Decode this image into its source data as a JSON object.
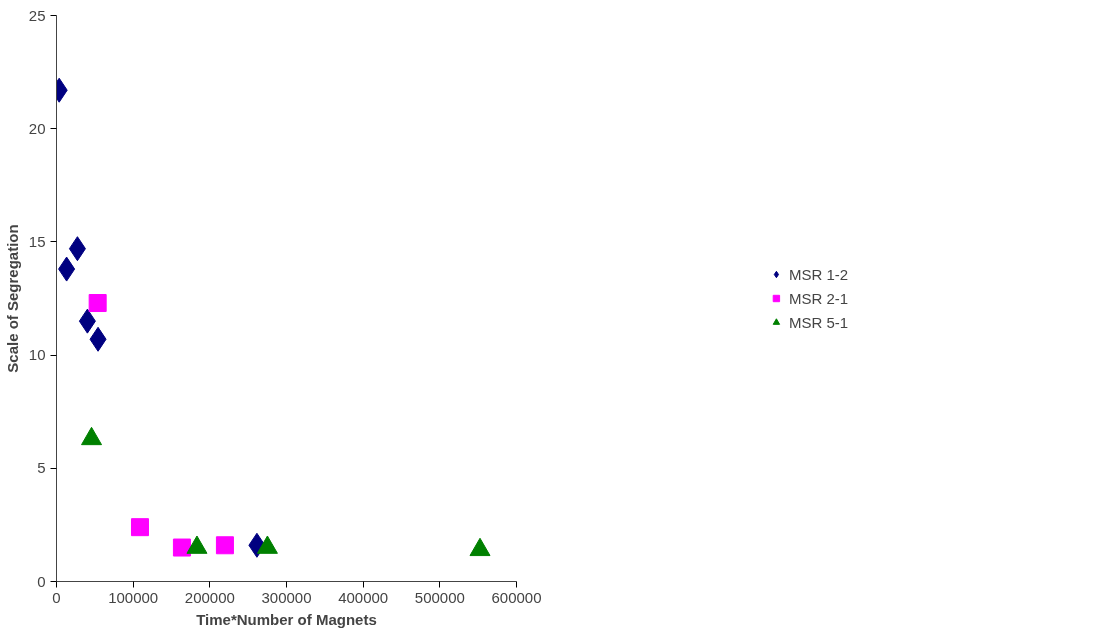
{
  "chart_data": {
    "type": "scatter",
    "xlabel": "Time*Number of Magnets",
    "ylabel": "Scale of Segregation",
    "xlim": [
      0,
      600000
    ],
    "xticks": [
      0,
      100000,
      200000,
      300000,
      400000,
      500000,
      600000
    ],
    "ylim": [
      0,
      25
    ],
    "yticks": [
      0,
      5,
      10,
      15,
      20,
      25
    ],
    "grid": false,
    "legend": "right",
    "series": [
      {
        "name": "MSR 1-2",
        "color": "#000080",
        "marker": "diamond",
        "x": [
          3500,
          13200,
          27300,
          40300,
          54200,
          261400
        ],
        "values": [
          21.7,
          13.8,
          14.7,
          11.5,
          10.7,
          1.6
        ]
      },
      {
        "name": "MSR 2-1",
        "color": "#ff00ff",
        "marker": "square",
        "x": [
          53700,
          108900,
          163600,
          219700
        ],
        "values": [
          12.3,
          2.4,
          1.5,
          1.6
        ]
      },
      {
        "name": "MSR 5-1",
        "color": "#008000",
        "marker": "triangle",
        "x": [
          45700,
          183200,
          275100,
          552400
        ],
        "values": [
          6.3,
          1.5,
          1.5,
          1.4
        ]
      }
    ]
  }
}
